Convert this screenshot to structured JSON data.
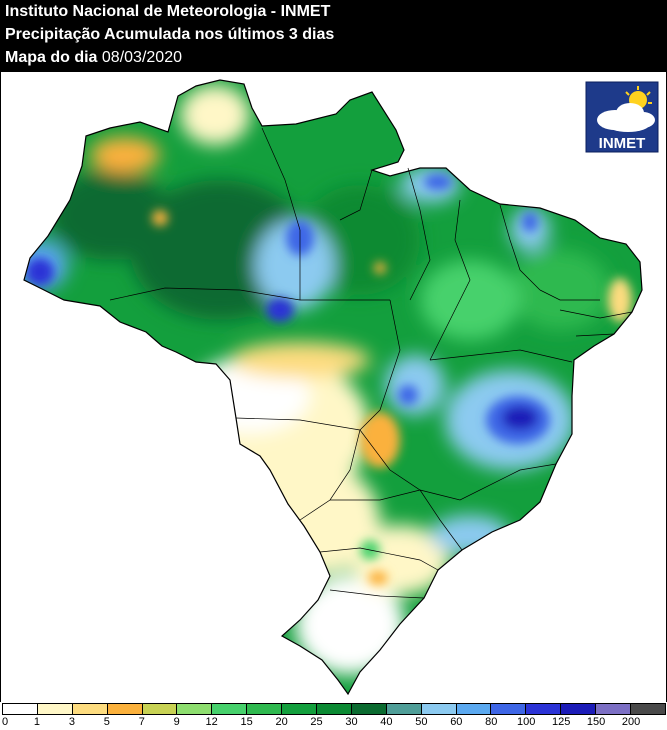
{
  "header": {
    "line1": "Instituto Nacional de Meteorologia - INMET",
    "line2": "Precipitação Acumulada nos últimos 3 dias",
    "line3_label": "Mapa do dia",
    "line3_date": "08/03/2020"
  },
  "logo": {
    "text": "INMET",
    "icon": "sun-cloud-icon"
  },
  "legend": {
    "ticks": [
      "0",
      "1",
      "3",
      "5",
      "7",
      "9",
      "12",
      "15",
      "20",
      "25",
      "30",
      "40",
      "50",
      "60",
      "80",
      "100",
      "125",
      "150",
      "200"
    ],
    "colors": [
      "#ffffff",
      "#fff7c7",
      "#fddc7f",
      "#fbb13c",
      "#c8d254",
      "#8ede6f",
      "#47d16c",
      "#2fb94f",
      "#139f3d",
      "#0b8a33",
      "#0b6b30",
      "#4f9e98",
      "#8ccaf0",
      "#5ba9f0",
      "#3e66e6",
      "#2b33d6",
      "#1c1cb8",
      "#7c6fc4",
      "#4a4a4a"
    ]
  }
}
